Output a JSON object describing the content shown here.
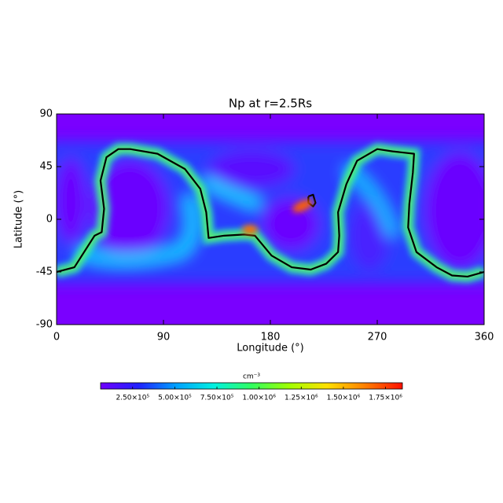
{
  "chart_data": {
    "type": "heatmap",
    "title": "Np at r=2.5Rs",
    "x_label": "Longitude (°)",
    "y_label": "Latitude (°)",
    "xlim": [
      0,
      360
    ],
    "ylim": [
      -90,
      90
    ],
    "xticks": [
      0,
      90,
      180,
      270,
      360
    ],
    "yticks": [
      -90,
      -45,
      0,
      45,
      90
    ],
    "colorbar": {
      "label": "cm⁻³",
      "clim": [
        60000,
        1850000
      ],
      "colors": [
        "#7000ff",
        "#2020ff",
        "#00a0ff",
        "#00f0e0",
        "#30ff60",
        "#a0ff00",
        "#ffe000",
        "#ff8000",
        "#ff1000"
      ],
      "ticks": [
        {
          "value": 250000,
          "label": "2.50×10⁵"
        },
        {
          "value": 500000,
          "label": "5.00×10⁵"
        },
        {
          "value": 750000,
          "label": "7.50×10⁵"
        },
        {
          "value": 1000000,
          "label": "1.00×10⁶"
        },
        {
          "value": 1250000,
          "label": "1.25×10⁶"
        },
        {
          "value": 1500000,
          "label": "1.50×10⁶"
        },
        {
          "value": 1750000,
          "label": "1.75×10⁶"
        }
      ]
    },
    "contours": [
      {
        "color": "#000000",
        "x": [
          0,
          15,
          32,
          38,
          40,
          37,
          42,
          52,
          62,
          85,
          108,
          121,
          126,
          128,
          141,
          158,
          167,
          181,
          198,
          214,
          227,
          237,
          238,
          237,
          244,
          253,
          270,
          283,
          301,
          300,
          297,
          296,
          303,
          320,
          333,
          346,
          360
        ],
        "y": [
          -45,
          -41,
          -14,
          -11,
          9,
          33,
          53,
          60,
          60,
          56,
          43,
          26,
          6,
          -16,
          -14,
          -13,
          -14,
          -31,
          -41,
          -43,
          -38,
          -28,
          -14,
          6,
          30,
          50,
          60,
          58,
          56,
          40,
          13,
          -7,
          -28,
          -41,
          -48,
          -49,
          -45
        ]
      },
      {
        "color": "#000000",
        "x": [
          212,
          216,
          218,
          216,
          212,
          212
        ],
        "y": [
          19.5,
          21,
          14,
          11,
          14,
          19.5
        ]
      }
    ]
  }
}
